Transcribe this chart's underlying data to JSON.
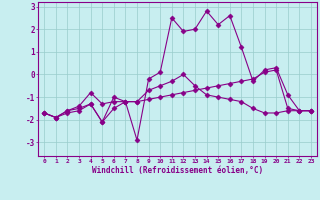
{
  "xlabel": "Windchill (Refroidissement éolien,°C)",
  "ylabel": "",
  "xlim": [
    -0.5,
    23.5
  ],
  "ylim": [
    -3.6,
    3.2
  ],
  "xticks": [
    0,
    1,
    2,
    3,
    4,
    5,
    6,
    7,
    8,
    9,
    10,
    11,
    12,
    13,
    14,
    15,
    16,
    17,
    18,
    19,
    20,
    21,
    22,
    23
  ],
  "yticks": [
    -3,
    -2,
    -1,
    0,
    1,
    2,
    3
  ],
  "background_color": "#c8eef0",
  "grid_color": "#99cccc",
  "line_color": "#880088",
  "line1": [
    -1.7,
    -1.9,
    -1.7,
    -1.6,
    -1.3,
    -2.1,
    -1.5,
    -1.2,
    -1.2,
    -1.1,
    -1.0,
    -0.9,
    -0.8,
    -0.7,
    -0.6,
    -0.5,
    -0.4,
    -0.3,
    -0.2,
    0.1,
    0.2,
    -1.5,
    -1.6,
    -1.6
  ],
  "line2": [
    -1.7,
    -1.9,
    -1.6,
    -1.5,
    -1.3,
    -2.1,
    -1.0,
    -1.2,
    -2.9,
    -0.2,
    0.1,
    2.5,
    1.9,
    2.0,
    2.8,
    2.2,
    2.6,
    1.2,
    -0.3,
    0.2,
    0.3,
    -0.9,
    -1.6,
    -1.6
  ],
  "line3": [
    -1.7,
    -1.9,
    -1.6,
    -1.4,
    -0.8,
    -1.3,
    -1.2,
    -1.2,
    -1.2,
    -0.7,
    -0.5,
    -0.3,
    0.0,
    -0.5,
    -0.9,
    -1.0,
    -1.1,
    -1.2,
    -1.5,
    -1.7,
    -1.7,
    -1.6,
    -1.6,
    -1.6
  ],
  "marker": "D",
  "markersize": 2.5,
  "linewidth": 0.8
}
